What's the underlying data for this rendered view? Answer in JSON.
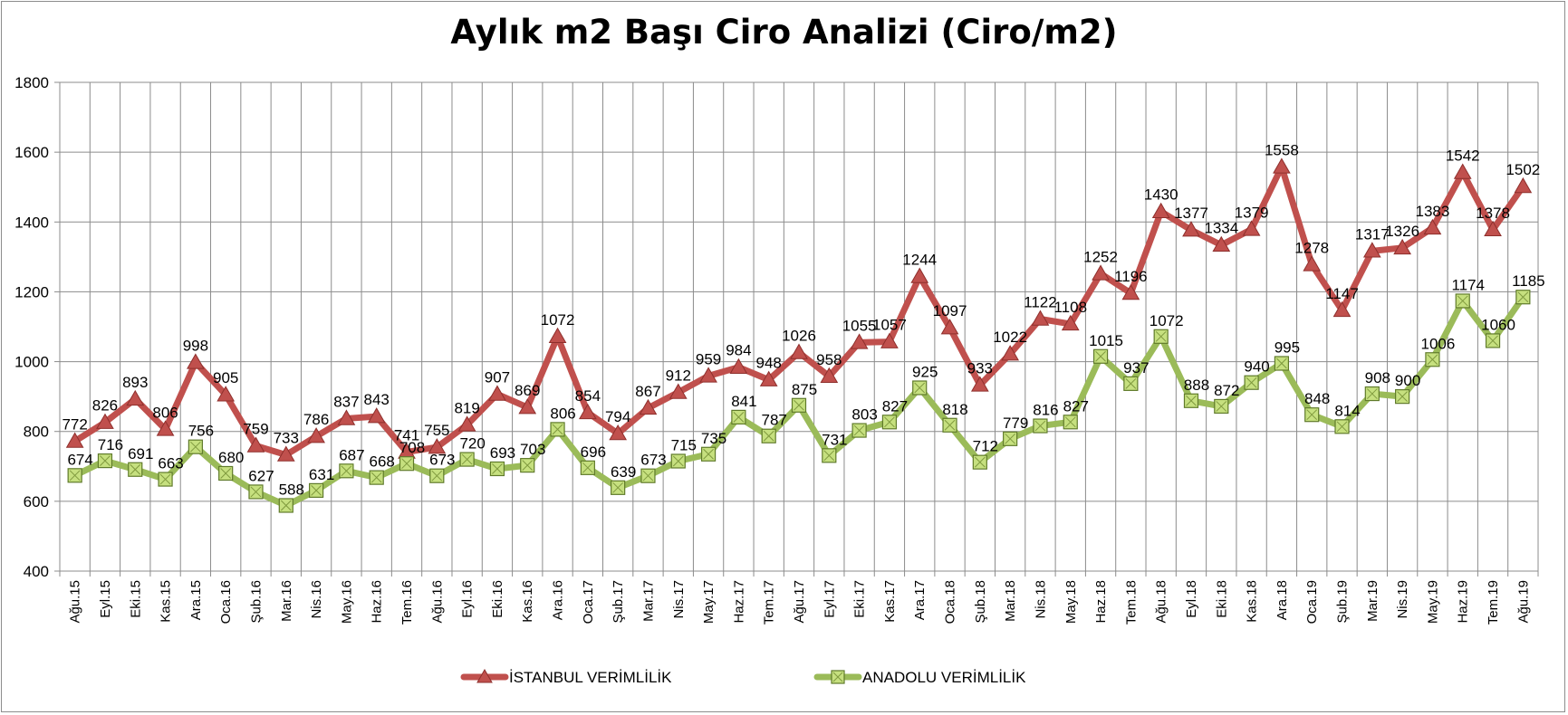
{
  "chart_data": {
    "type": "line",
    "title": "Aylık m2 Başı Ciro Analizi (Ciro/m2)",
    "xlabel": "",
    "ylabel": "",
    "ylim": [
      400,
      1800
    ],
    "yticks": [
      400,
      600,
      800,
      1000,
      1200,
      1400,
      1600,
      1800
    ],
    "grid": true,
    "legend_position": "bottom",
    "categories": [
      "Ağu.15",
      "Eyl.15",
      "Eki.15",
      "Kas.15",
      "Ara.15",
      "Oca.16",
      "Şub.16",
      "Mar.16",
      "Nis.16",
      "May.16",
      "Haz.16",
      "Tem.16",
      "Ağu.16",
      "Eyl.16",
      "Eki.16",
      "Kas.16",
      "Ara.16",
      "Oca.17",
      "Şub.17",
      "Mar.17",
      "Nis.17",
      "May.17",
      "Haz.17",
      "Tem.17",
      "Ağu.17",
      "Eyl.17",
      "Eki.17",
      "Kas.17",
      "Ara.17",
      "Oca.18",
      "Şub.18",
      "Mar.18",
      "Nis.18",
      "May.18",
      "Haz.18",
      "Tem.18",
      "Ağu.18",
      "Eyl.18",
      "Eki.18",
      "Kas.18",
      "Ara.18",
      "Oca.19",
      "Şub.19",
      "Mar.19",
      "Nis.19",
      "May.19",
      "Haz.19",
      "Tem.19",
      "Ağu.19"
    ],
    "series": [
      {
        "name": "İSTANBUL VERİMLİLİK",
        "color": "#c0504d",
        "marker": "triangle",
        "values": [
          772,
          826,
          893,
          806,
          998,
          905,
          759,
          733,
          786,
          837,
          843,
          741,
          755,
          819,
          907,
          869,
          1072,
          854,
          794,
          867,
          912,
          959,
          984,
          948,
          1026,
          958,
          1055,
          1057,
          1244,
          1097,
          933,
          1022,
          1122,
          1108,
          1252,
          1196,
          1430,
          1377,
          1334,
          1379,
          1558,
          1278,
          1147,
          1317,
          1326,
          1383,
          1542,
          1378,
          1502
        ]
      },
      {
        "name": "ANADOLU VERİMLİLİK",
        "color": "#9bbb59",
        "marker": "square",
        "values": [
          674,
          716,
          691,
          663,
          756,
          680,
          627,
          588,
          631,
          687,
          668,
          708,
          673,
          720,
          693,
          703,
          806,
          696,
          639,
          673,
          715,
          735,
          841,
          787,
          875,
          731,
          803,
          827,
          925,
          818,
          712,
          779,
          816,
          827,
          1015,
          937,
          1072,
          888,
          872,
          940,
          995,
          848,
          814,
          908,
          900,
          1006,
          1174,
          1060,
          1185
        ]
      }
    ]
  }
}
